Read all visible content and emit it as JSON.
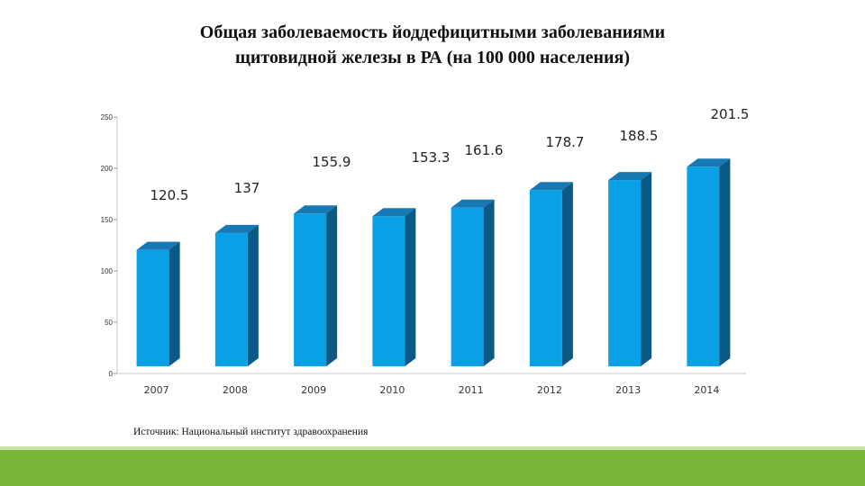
{
  "chart_data": {
    "type": "bar",
    "title_line1": "Общая заболеваемость йоддефицитными заболеваниями",
    "title_line2": "щитовидной железы  в РА  (на 100 000 населения)",
    "categories": [
      "2007",
      "2008",
      "2009",
      "2010",
      "2011",
      "2012",
      "2013",
      "2014"
    ],
    "values": [
      120.5,
      137,
      155.9,
      153.3,
      161.6,
      178.7,
      188.5,
      201.5
    ],
    "data_labels": [
      "120.5",
      "137",
      "155.9",
      "153.3",
      "161.6",
      "178.7",
      "188.5",
      "201.5"
    ],
    "yticks": [
      "0",
      "50",
      "100",
      "150",
      "200",
      "250"
    ],
    "ylim": [
      0,
      250
    ],
    "grid": false,
    "legend": "none",
    "colors": {
      "bar_front": "#0aa0e6",
      "bar_top": "#1778b4",
      "bar_side": "#0b5a86"
    }
  },
  "source_text": "Источник: Национальный институт здравоохранения",
  "theme": {
    "footer_band": "#78b53a"
  }
}
